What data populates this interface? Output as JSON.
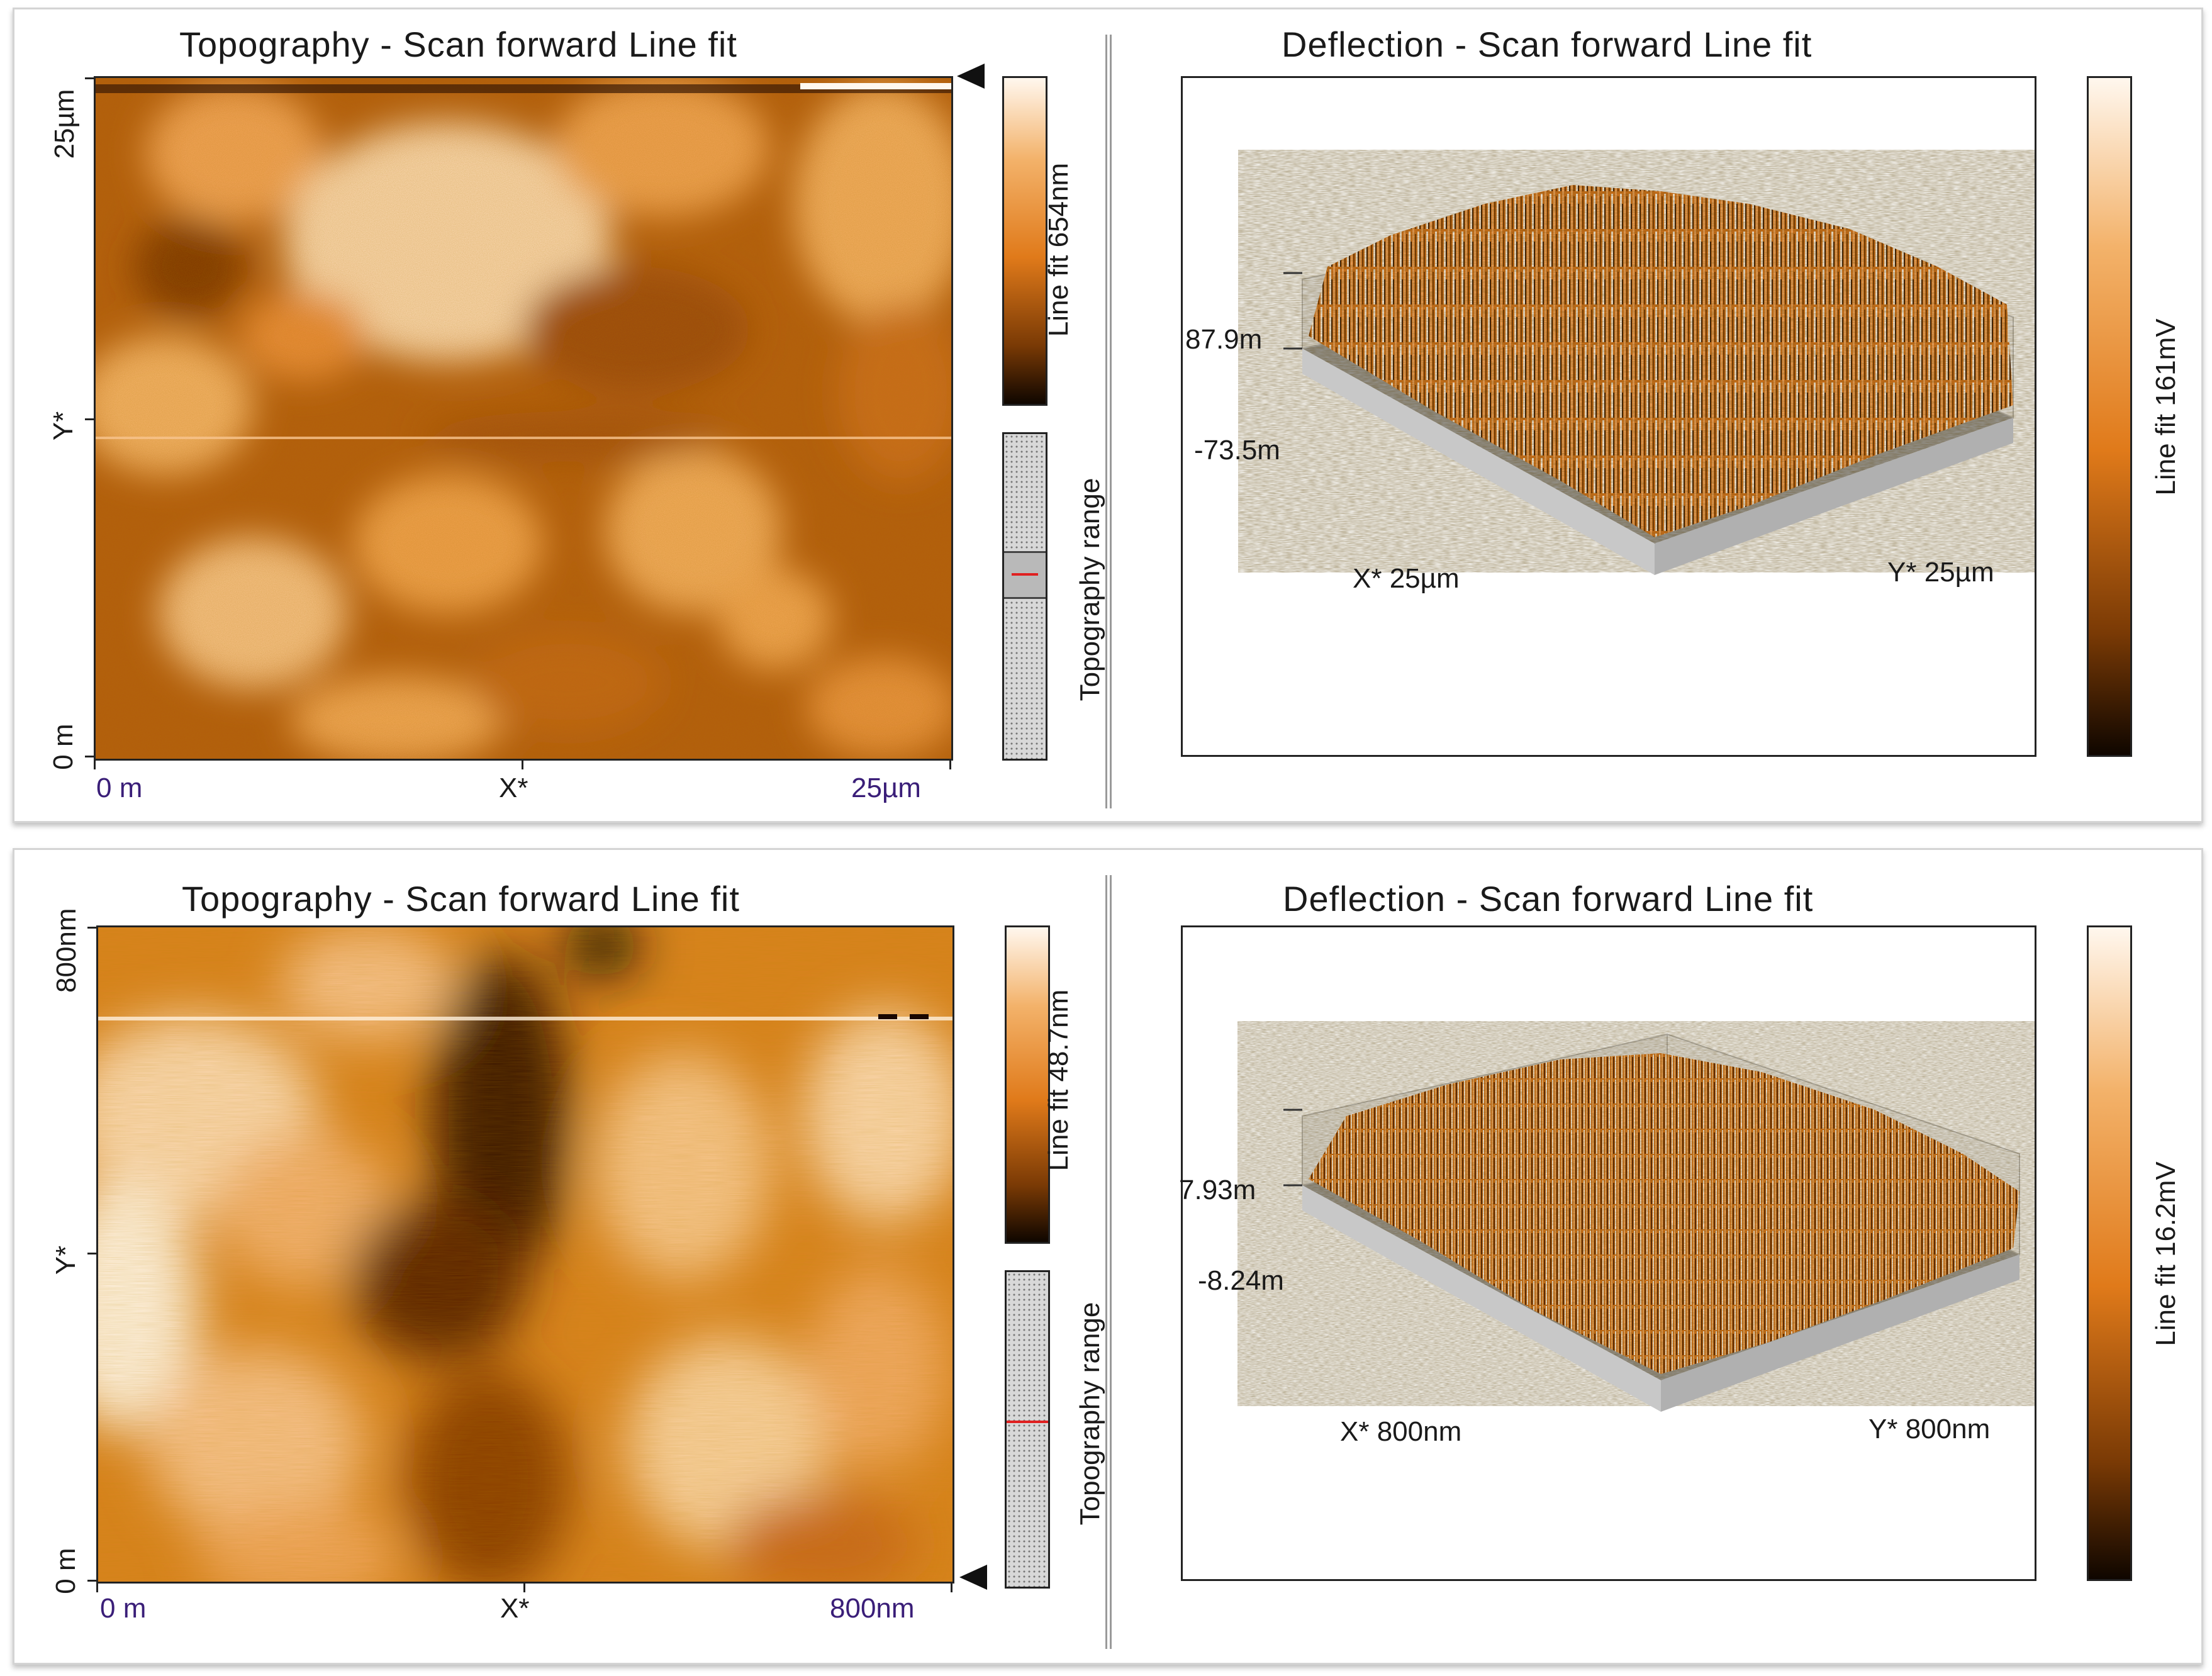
{
  "colors": {
    "afm_dark": "#1a0800",
    "afm_mid": "#d9701a",
    "afm_light": "#fff4e6"
  },
  "panels": [
    {
      "topography": {
        "title": "Topography - Scan forward   Line fit",
        "x_start": "0 m",
        "x_axis": "X*",
        "x_end": "25µm",
        "y_top": "25µm",
        "y_axis": "Y*",
        "y_bottom": "0 m",
        "colorbar_label": "Line fit 654nm",
        "range_label": "Topography range",
        "range_marker_icon": "triangle-left-icon"
      },
      "deflection": {
        "title": "Deflection - Scan forward   Line fit",
        "z_max": "87.9m",
        "z_min": "-73.5m",
        "x_label": "X* 25µm",
        "y_label": "Y* 25µm",
        "colorbar_label": "Line fit 161mV"
      }
    },
    {
      "topography": {
        "title": "Topography - Scan forward   Line fit",
        "x_start": "0 m",
        "x_axis": "X*",
        "x_end": "800nm",
        "y_top": "800nm",
        "y_axis": "Y*",
        "y_bottom": "0 m",
        "colorbar_label": "Line fit 48.7nm",
        "range_label": "Topography range",
        "range_marker_icon": "triangle-left-icon"
      },
      "deflection": {
        "title": "Deflection - Scan forward   Line fit",
        "z_max": "7.93m",
        "z_min": "-8.24m",
        "x_label": "X* 800nm",
        "y_label": "Y* 800nm",
        "colorbar_label": "Line fit 16.2mV"
      }
    }
  ]
}
